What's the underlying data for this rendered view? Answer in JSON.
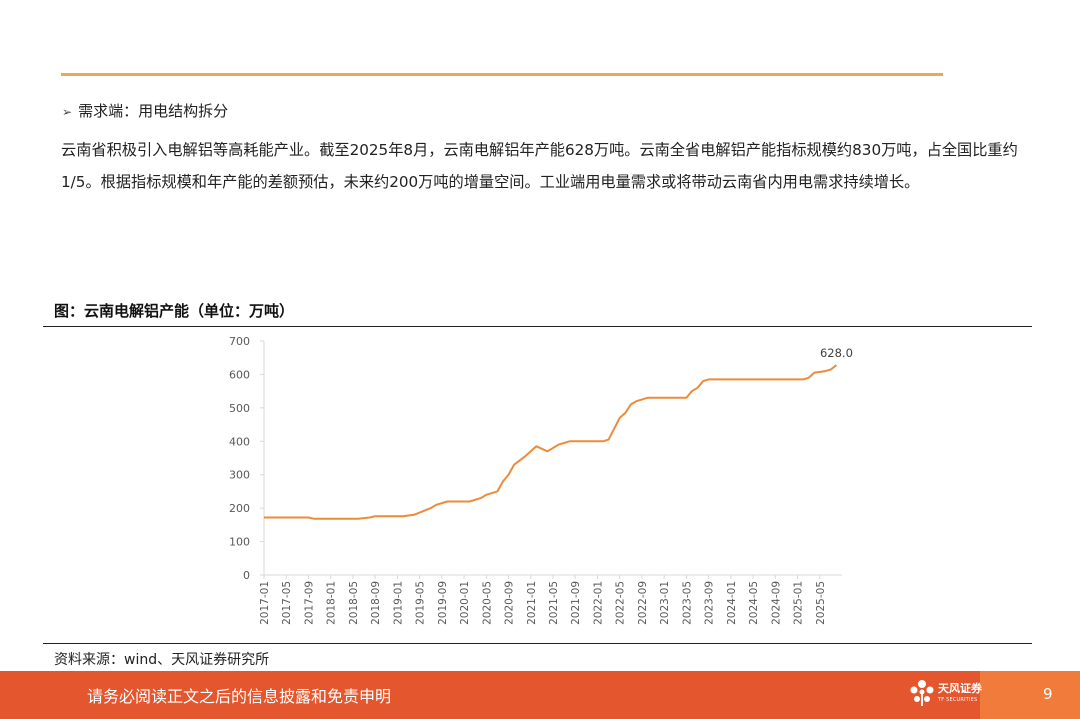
{
  "section": {
    "arrow": "➢",
    "heading": "需求端：用电结构拆分",
    "paragraph": "云南省积极引入电解铝等高耗能产业。截至2025年8月，云南电解铝年产能628万吨。云南全省电解铝产能指标规模约830万吨，占全国比重约1/5。根据指标规模和年产能的差额预估，未来约200万吨的增量空间。工业端用电量需求或将带动云南省内用电需求持续增长。"
  },
  "figure": {
    "title": "图：云南电解铝产能（单位：万吨）",
    "source": "资料来源：wind、天风证券研究所"
  },
  "footer": {
    "text": "请务必阅读正文之后的信息披露和免责申明",
    "brand": "天风证券",
    "brand_sub": "TF SECURITIES",
    "page": "9"
  },
  "colors": {
    "line": "#ed8b3a",
    "accent_rule": "#f2a455",
    "footer_bg": "#e4572e"
  },
  "chart_data": {
    "type": "line",
    "title": "",
    "xlabel": "",
    "ylabel": "",
    "ylim": [
      0,
      700
    ],
    "yticks": [
      "0",
      "100",
      "200",
      "300",
      "400",
      "500",
      "600",
      "700"
    ],
    "xticks": [
      "2017-01",
      "2017-05",
      "2017-09",
      "2018-01",
      "2018-05",
      "2018-09",
      "2019-01",
      "2019-05",
      "2019-09",
      "2020-01",
      "2020-05",
      "2020-09",
      "2021-01",
      "2021-05",
      "2021-09",
      "2022-01",
      "2022-05",
      "2022-09",
      "2023-01",
      "2023-05",
      "2023-09",
      "2024-01",
      "2024-05",
      "2024-09",
      "2025-01",
      "2025-05"
    ],
    "last_label": "628.0",
    "series": [
      {
        "x": [
          "2017-01",
          "2017-09",
          "2017-10",
          "2018-06",
          "2018-08",
          "2018-09",
          "2019-01",
          "2019-02",
          "2019-04",
          "2019-07",
          "2019-08",
          "2019-10",
          "2019-12",
          "2020-02",
          "2020-04",
          "2020-05",
          "2020-07",
          "2020-08",
          "2020-09",
          "2020-10",
          "2020-12",
          "2021-01",
          "2021-02",
          "2021-04",
          "2021-06",
          "2021-08",
          "2021-10",
          "2022-01",
          "2022-02",
          "2022-03",
          "2022-05",
          "2022-06",
          "2022-07",
          "2022-08",
          "2022-10",
          "2023-05",
          "2023-06",
          "2023-07",
          "2023-08",
          "2023-09",
          "2023-10",
          "2024-01",
          "2024-06",
          "2025-02",
          "2025-03",
          "2025-04",
          "2025-06",
          "2025-07",
          "2025-08"
        ],
        "values": [
          172,
          172,
          168,
          168,
          172,
          176,
          176,
          176,
          180,
          200,
          210,
          220,
          220,
          220,
          230,
          240,
          250,
          280,
          300,
          330,
          355,
          370,
          385,
          370,
          390,
          400,
          400,
          400,
          400,
          405,
          470,
          485,
          510,
          520,
          530,
          530,
          550,
          560,
          580,
          585,
          585,
          585,
          585,
          585,
          590,
          605,
          610,
          615,
          628
        ]
      }
    ]
  }
}
